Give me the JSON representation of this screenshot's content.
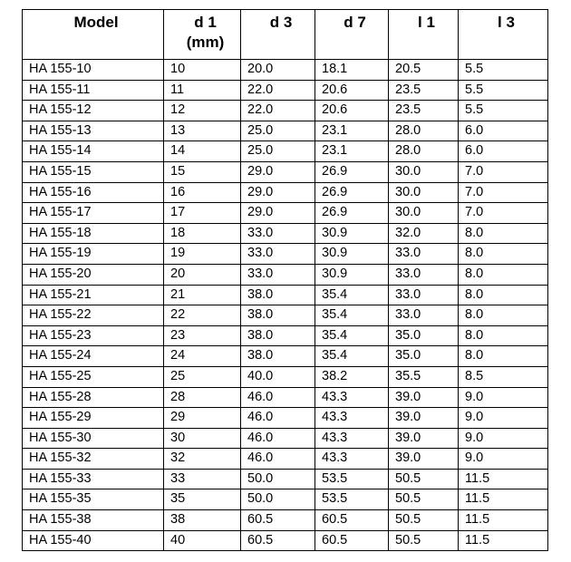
{
  "table": {
    "header": [
      "Model",
      "d 1",
      "d 3",
      "d 7",
      "l 1",
      "l 3"
    ],
    "header_unit": "(mm)",
    "rows": [
      [
        "HA 155-10",
        "10",
        "20.0",
        "18.1",
        "20.5",
        "5.5"
      ],
      [
        "HA 155-11",
        "11",
        "22.0",
        "20.6",
        "23.5",
        "5.5"
      ],
      [
        "HA 155-12",
        "12",
        "22.0",
        "20.6",
        "23.5",
        "5.5"
      ],
      [
        "HA 155-13",
        "13",
        "25.0",
        "23.1",
        "28.0",
        "6.0"
      ],
      [
        "HA 155-14",
        "14",
        "25.0",
        "23.1",
        "28.0",
        "6.0"
      ],
      [
        "HA 155-15",
        "15",
        "29.0",
        "26.9",
        "30.0",
        "7.0"
      ],
      [
        "HA 155-16",
        "16",
        "29.0",
        "26.9",
        "30.0",
        "7.0"
      ],
      [
        "HA 155-17",
        "17",
        "29.0",
        "26.9",
        "30.0",
        "7.0"
      ],
      [
        "HA 155-18",
        "18",
        "33.0",
        "30.9",
        "32.0",
        "8.0"
      ],
      [
        "HA 155-19",
        "19",
        "33.0",
        "30.9",
        "33.0",
        "8.0"
      ],
      [
        "HA 155-20",
        "20",
        "33.0",
        "30.9",
        "33.0",
        "8.0"
      ],
      [
        "HA 155-21",
        "21",
        "38.0",
        "35.4",
        "33.0",
        "8.0"
      ],
      [
        "HA 155-22",
        "22",
        "38.0",
        "35.4",
        "33.0",
        "8.0"
      ],
      [
        "HA 155-23",
        "23",
        "38.0",
        "35.4",
        "35.0",
        "8.0"
      ],
      [
        "HA 155-24",
        "24",
        "38.0",
        "35.4",
        "35.0",
        "8.0"
      ],
      [
        "HA 155-25",
        "25",
        "40.0",
        "38.2",
        "35.5",
        "8.5"
      ],
      [
        "HA 155-28",
        "28",
        "46.0",
        "43.3",
        "39.0",
        "9.0"
      ],
      [
        "HA 155-29",
        "29",
        "46.0",
        "43.3",
        "39.0",
        "9.0"
      ],
      [
        "HA 155-30",
        "30",
        "46.0",
        "43.3",
        "39.0",
        "9.0"
      ],
      [
        "HA 155-32",
        "32",
        "46.0",
        "43.3",
        "39.0",
        "9.0"
      ],
      [
        "HA 155-33",
        "33",
        "50.0",
        "53.5",
        "50.5",
        "11.5"
      ],
      [
        "HA 155-35",
        "35",
        "50.0",
        "53.5",
        "50.5",
        "11.5"
      ],
      [
        "HA 155-38",
        "38",
        "60.5",
        "60.5",
        "50.5",
        "11.5"
      ],
      [
        "HA 155-40",
        "40",
        "60.5",
        "60.5",
        "50.5",
        "11.5"
      ]
    ]
  }
}
